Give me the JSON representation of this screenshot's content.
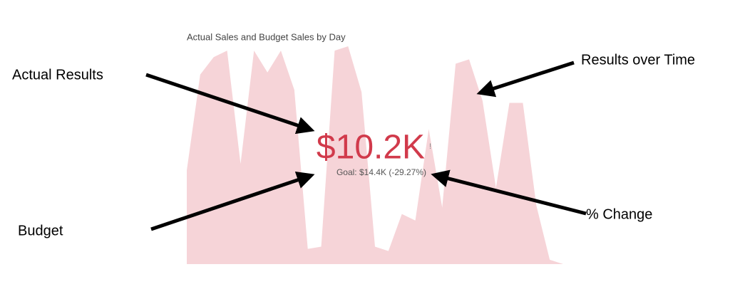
{
  "chart_data": {
    "type": "area",
    "title": "Actual Sales and Budget Sales by Day",
    "values": [
      43,
      87,
      95,
      98,
      46,
      98,
      88,
      98,
      80,
      7,
      8,
      98,
      100,
      79,
      8,
      6,
      23,
      20,
      62,
      26,
      92,
      94,
      75,
      35,
      74,
      74,
      27,
      2,
      0
    ],
    "color": "#f6d4d8",
    "ylim": [
      0,
      100
    ],
    "kpi": {
      "value": 10200,
      "value_label": "$10.2K",
      "color": "#d13a4b",
      "goal_text": "Goal: $14.4K (-29.27%)"
    }
  },
  "annotations": [
    "Actual Results",
    "Results over Time",
    "Budget",
    "% Change"
  ]
}
